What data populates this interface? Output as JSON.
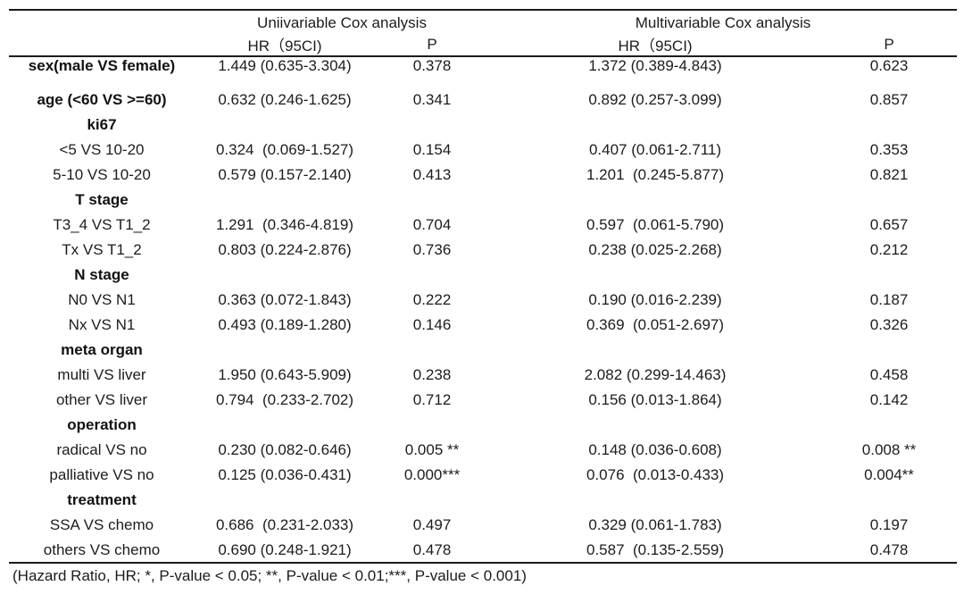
{
  "table": {
    "group_headers": {
      "univariable": "Uniivariable Cox analysis",
      "multivariable": "Multivariable Cox analysis"
    },
    "columns": {
      "uni_hr": "HR（95CI)",
      "uni_p": "P",
      "multi_hr": "HR（95CI)",
      "multi_p": "P"
    },
    "rows": [
      {
        "label": "sex(male VS female)",
        "bold": true,
        "gap_after": true,
        "uni_hr": "1.449 (0.635-3.304)",
        "uni_p": "0.378",
        "multi_hr": "1.372 (0.389-4.843)",
        "multi_p": "0.623"
      },
      {
        "label": "age (<60 VS >=60)",
        "bold": true,
        "uni_hr": "0.632 (0.246-1.625)",
        "uni_p": "0.341",
        "multi_hr": "0.892 (0.257-3.099)",
        "multi_p": "0.857"
      },
      {
        "label": "ki67",
        "bold": true,
        "uni_hr": "",
        "uni_p": "",
        "multi_hr": "",
        "multi_p": ""
      },
      {
        "label": "<5 VS 10-20",
        "bold": false,
        "uni_hr": "0.324  (0.069-1.527)",
        "uni_p": "0.154",
        "multi_hr": "0.407 (0.061-2.711)",
        "multi_p": "0.353"
      },
      {
        "label": "5-10 VS 10-20",
        "bold": false,
        "uni_hr": "0.579 (0.157-2.140)",
        "uni_p": "0.413",
        "multi_hr": "1.201  (0.245-5.877)",
        "multi_p": "0.821"
      },
      {
        "label": "T stage",
        "bold": true,
        "uni_hr": "",
        "uni_p": "",
        "multi_hr": "",
        "multi_p": ""
      },
      {
        "label": "T3_4 VS T1_2",
        "bold": false,
        "uni_hr": "1.291  (0.346-4.819)",
        "uni_p": "0.704",
        "multi_hr": "0.597  (0.061-5.790)",
        "multi_p": "0.657"
      },
      {
        "label": "Tx VS T1_2",
        "bold": false,
        "uni_hr": "0.803 (0.224-2.876)",
        "uni_p": "0.736",
        "multi_hr": "0.238 (0.025-2.268)",
        "multi_p": "0.212"
      },
      {
        "label": "N stage",
        "bold": true,
        "uni_hr": "",
        "uni_p": "",
        "multi_hr": "",
        "multi_p": ""
      },
      {
        "label": "N0 VS N1",
        "bold": false,
        "uni_hr": "0.363 (0.072-1.843)",
        "uni_p": "0.222",
        "multi_hr": "0.190 (0.016-2.239)",
        "multi_p": "0.187"
      },
      {
        "label": "Nx VS N1",
        "bold": false,
        "uni_hr": "0.493 (0.189-1.280)",
        "uni_p": "0.146",
        "multi_hr": "0.369  (0.051-2.697)",
        "multi_p": "0.326"
      },
      {
        "label": "meta organ",
        "bold": true,
        "uni_hr": "",
        "uni_p": "",
        "multi_hr": "",
        "multi_p": ""
      },
      {
        "label": "multi VS liver",
        "bold": false,
        "uni_hr": "1.950 (0.643-5.909)",
        "uni_p": "0.238",
        "multi_hr": "2.082 (0.299-14.463)",
        "multi_p": "0.458"
      },
      {
        "label": "other VS liver",
        "bold": false,
        "uni_hr": "0.794  (0.233-2.702)",
        "uni_p": "0.712",
        "multi_hr": "0.156 (0.013-1.864)",
        "multi_p": "0.142"
      },
      {
        "label": "operation",
        "bold": true,
        "uni_hr": "",
        "uni_p": "",
        "multi_hr": "",
        "multi_p": ""
      },
      {
        "label": "radical VS no",
        "bold": false,
        "uni_hr": "0.230 (0.082-0.646)",
        "uni_p": "0.005 **",
        "multi_hr": "0.148 (0.036-0.608)",
        "multi_p": "0.008 **"
      },
      {
        "label": "palliative VS no",
        "bold": false,
        "uni_hr": "0.125 (0.036-0.431)",
        "uni_p": "0.000***",
        "multi_hr": "0.076  (0.013-0.433)",
        "multi_p": "0.004**"
      },
      {
        "label": "treatment",
        "bold": true,
        "uni_hr": "",
        "uni_p": "",
        "multi_hr": "",
        "multi_p": ""
      },
      {
        "label": "SSA VS chemo",
        "bold": false,
        "uni_hr": "0.686  (0.231-2.033)",
        "uni_p": "0.497",
        "multi_hr": "0.329 (0.061-1.783)",
        "multi_p": "0.197"
      },
      {
        "label": "others VS chemo",
        "bold": false,
        "uni_hr": "0.690 (0.248-1.921)",
        "uni_p": "0.478",
        "multi_hr": "0.587  (0.135-2.559)",
        "multi_p": "0.478"
      }
    ],
    "footnote": "(Hazard Ratio, HR; *, P-value < 0.05; **, P-value < 0.01;***, P-value < 0.001)"
  }
}
